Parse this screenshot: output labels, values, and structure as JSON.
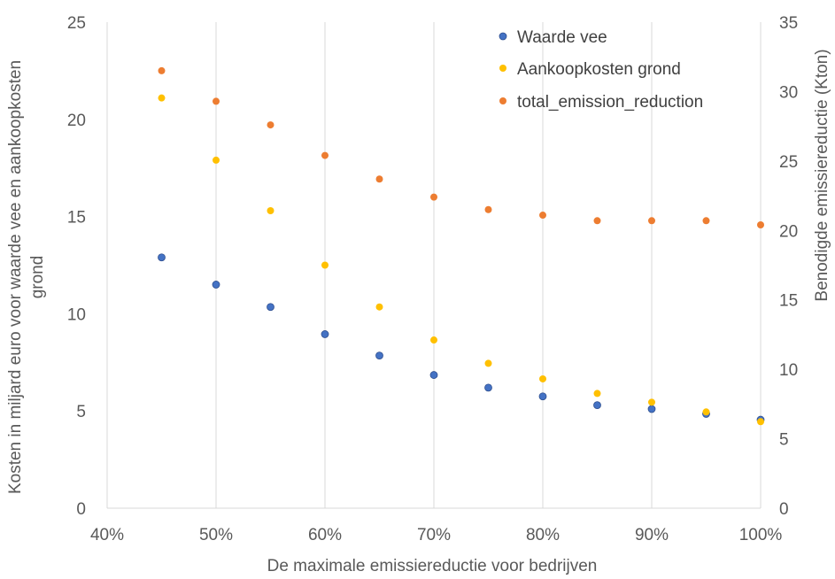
{
  "chart_data": {
    "type": "scatter",
    "title": "",
    "xlabel": "De maximale emissiereductie voor bedrijven",
    "ylabel": "Kosten in miljard euro voor waarde vee en aankoopkosten grond",
    "ylabel_lines": [
      "Kosten in miljard euro voor waarde vee en aankoopkosten",
      "grond"
    ],
    "y2label": "Benodigde emissiereductie (Kton)",
    "xlim": [
      0.4,
      1.0
    ],
    "ylim": [
      0,
      25
    ],
    "y2lim": [
      0,
      35
    ],
    "x_ticks": [
      0.4,
      0.5,
      0.6,
      0.7,
      0.8,
      0.9,
      1.0
    ],
    "x_tick_labels": [
      "40%",
      "50%",
      "60%",
      "70%",
      "80%",
      "90%",
      "100%"
    ],
    "y_ticks": [
      0,
      5,
      10,
      15,
      20,
      25
    ],
    "y_tick_labels": [
      "0",
      "5",
      "10",
      "15",
      "20",
      "25"
    ],
    "y2_ticks": [
      0,
      5,
      10,
      15,
      20,
      25,
      30,
      35
    ],
    "y2_tick_labels": [
      "0",
      "5",
      "10",
      "15",
      "20",
      "25",
      "30",
      "35"
    ],
    "grid": "vertical",
    "legend_position": "top-right",
    "x": [
      0.45,
      0.5,
      0.55,
      0.6,
      0.65,
      0.7,
      0.75,
      0.8,
      0.85,
      0.9,
      0.95,
      1.0
    ],
    "series": [
      {
        "name": "Waarde vee",
        "axis": "left",
        "color": "#4472c4",
        "values": [
          12.9,
          11.5,
          10.35,
          8.95,
          7.85,
          6.85,
          6.2,
          5.75,
          5.3,
          5.1,
          4.85,
          4.55
        ]
      },
      {
        "name": "Aankoopkosten grond",
        "axis": "left",
        "color": "#ffc000",
        "values": [
          21.1,
          17.9,
          15.3,
          12.5,
          10.35,
          8.65,
          7.45,
          6.65,
          5.9,
          5.45,
          4.95,
          4.45
        ]
      },
      {
        "name": "total_emission_reduction",
        "axis": "right",
        "color": "#ed7d31",
        "values": [
          31.5,
          29.3,
          27.6,
          25.4,
          23.7,
          22.4,
          21.5,
          21.1,
          20.7,
          20.7,
          20.7,
          20.4
        ]
      }
    ]
  }
}
